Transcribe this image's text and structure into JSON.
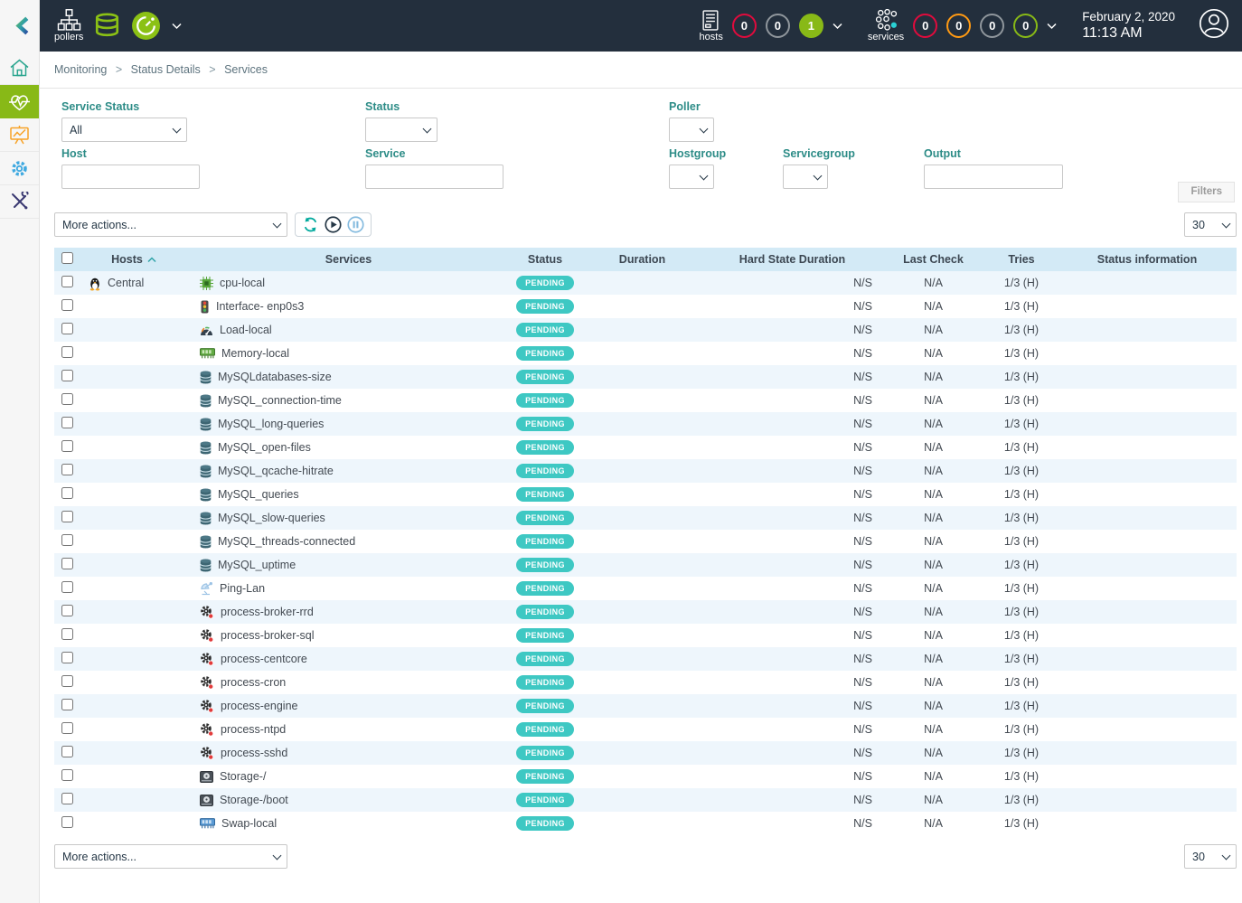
{
  "top_header": {
    "pollers": {
      "label": "pollers",
      "icon": "pollers-icon",
      "db_icon": "poller-database-icon",
      "latency_icon": "poller-latency-icon",
      "chevron_icon": "chevron-down-icon"
    },
    "hosts": {
      "label": "hosts",
      "icon": "hosts-icon",
      "chevron_icon": "chevron-down-icon",
      "counters": [
        {
          "value": "0",
          "status": "down",
          "color": "#e00b3d"
        },
        {
          "value": "0",
          "status": "unreachable",
          "color": "#8f969c"
        },
        {
          "value": "1",
          "status": "up",
          "color": "#88b917"
        }
      ]
    },
    "services": {
      "label": "services",
      "icon": "services-icon",
      "chevron_icon": "chevron-down-icon",
      "counters": [
        {
          "value": "0",
          "status": "critical",
          "color": "#e00b3d"
        },
        {
          "value": "0",
          "status": "warning",
          "color": "#ff9a13"
        },
        {
          "value": "0",
          "status": "unknown",
          "color": "#8f969c"
        },
        {
          "value": "0",
          "status": "ok",
          "color": "#88b917"
        }
      ]
    },
    "clock": {
      "date": "February 2, 2020",
      "time": "11:13 AM"
    },
    "user": {
      "icon": "user-icon"
    }
  },
  "sidebar": {
    "logo_icon": "centreon-logo-icon",
    "items": [
      {
        "name": "home",
        "icon": "home-icon",
        "active": false
      },
      {
        "name": "monitoring",
        "icon": "monitoring-icon",
        "active": true
      },
      {
        "name": "reporting",
        "icon": "reporting-icon",
        "active": false
      },
      {
        "name": "configuration",
        "icon": "configuration-icon",
        "active": false
      },
      {
        "name": "administration",
        "icon": "administration-icon",
        "active": false
      }
    ]
  },
  "breadcrumb": {
    "items": [
      "Monitoring",
      "Status Details",
      "Services"
    ],
    "separator": ">"
  },
  "filters": {
    "service_status": {
      "label": "Service Status",
      "value": "All"
    },
    "status": {
      "label": "Status",
      "value": ""
    },
    "poller": {
      "label": "Poller",
      "value": ""
    },
    "host": {
      "label": "Host",
      "value": ""
    },
    "service": {
      "label": "Service",
      "value": ""
    },
    "hostgroup": {
      "label": "Hostgroup",
      "value": ""
    },
    "servicegroup": {
      "label": "Servicegroup",
      "value": ""
    },
    "output": {
      "label": "Output",
      "value": ""
    },
    "tab_label": "Filters"
  },
  "toolbar": {
    "more_actions": "More actions...",
    "refresh_icon": "refresh-icon",
    "play_icon": "play-icon",
    "pause_icon": "pause-icon",
    "page_size": "30"
  },
  "footer": {
    "more_actions": "More actions...",
    "page_size": "30"
  },
  "table": {
    "sort_icon": "sort-asc-icon",
    "headers": {
      "hosts": "Hosts",
      "services": "Services",
      "status": "Status",
      "duration": "Duration",
      "hard_state_duration": "Hard State Duration",
      "last_check": "Last Check",
      "tries": "Tries",
      "status_information": "Status information"
    },
    "rows": [
      {
        "host": "Central",
        "host_icon": "linux-icon",
        "service_icon": "cpu-icon",
        "service": "cpu-local",
        "status": "PENDING",
        "duration": "",
        "hard_state_duration": "N/S",
        "last_check": "N/A",
        "tries": "1/3 (H)",
        "status_information": ""
      },
      {
        "host": "",
        "host_icon": "",
        "service_icon": "interface-icon",
        "service": "Interface- enp0s3",
        "status": "PENDING",
        "duration": "",
        "hard_state_duration": "N/S",
        "last_check": "N/A",
        "tries": "1/3 (H)",
        "status_information": ""
      },
      {
        "host": "",
        "host_icon": "",
        "service_icon": "load-icon",
        "service": "Load-local",
        "status": "PENDING",
        "duration": "",
        "hard_state_duration": "N/S",
        "last_check": "N/A",
        "tries": "1/3 (H)",
        "status_information": ""
      },
      {
        "host": "",
        "host_icon": "",
        "service_icon": "memory-icon",
        "service": "Memory-local",
        "status": "PENDING",
        "duration": "",
        "hard_state_duration": "N/S",
        "last_check": "N/A",
        "tries": "1/3 (H)",
        "status_information": ""
      },
      {
        "host": "",
        "host_icon": "",
        "service_icon": "database-icon",
        "service": "MySQLdatabases-size",
        "status": "PENDING",
        "duration": "",
        "hard_state_duration": "N/S",
        "last_check": "N/A",
        "tries": "1/3 (H)",
        "status_information": ""
      },
      {
        "host": "",
        "host_icon": "",
        "service_icon": "database-icon",
        "service": "MySQL_connection-time",
        "status": "PENDING",
        "duration": "",
        "hard_state_duration": "N/S",
        "last_check": "N/A",
        "tries": "1/3 (H)",
        "status_information": ""
      },
      {
        "host": "",
        "host_icon": "",
        "service_icon": "database-icon",
        "service": "MySQL_long-queries",
        "status": "PENDING",
        "duration": "",
        "hard_state_duration": "N/S",
        "last_check": "N/A",
        "tries": "1/3 (H)",
        "status_information": ""
      },
      {
        "host": "",
        "host_icon": "",
        "service_icon": "database-icon",
        "service": "MySQL_open-files",
        "status": "PENDING",
        "duration": "",
        "hard_state_duration": "N/S",
        "last_check": "N/A",
        "tries": "1/3 (H)",
        "status_information": ""
      },
      {
        "host": "",
        "host_icon": "",
        "service_icon": "database-icon",
        "service": "MySQL_qcache-hitrate",
        "status": "PENDING",
        "duration": "",
        "hard_state_duration": "N/S",
        "last_check": "N/A",
        "tries": "1/3 (H)",
        "status_information": ""
      },
      {
        "host": "",
        "host_icon": "",
        "service_icon": "database-icon",
        "service": "MySQL_queries",
        "status": "PENDING",
        "duration": "",
        "hard_state_duration": "N/S",
        "last_check": "N/A",
        "tries": "1/3 (H)",
        "status_information": ""
      },
      {
        "host": "",
        "host_icon": "",
        "service_icon": "database-icon",
        "service": "MySQL_slow-queries",
        "status": "PENDING",
        "duration": "",
        "hard_state_duration": "N/S",
        "last_check": "N/A",
        "tries": "1/3 (H)",
        "status_information": ""
      },
      {
        "host": "",
        "host_icon": "",
        "service_icon": "database-icon",
        "service": "MySQL_threads-connected",
        "status": "PENDING",
        "duration": "",
        "hard_state_duration": "N/S",
        "last_check": "N/A",
        "tries": "1/3 (H)",
        "status_information": ""
      },
      {
        "host": "",
        "host_icon": "",
        "service_icon": "database-icon",
        "service": "MySQL_uptime",
        "status": "PENDING",
        "duration": "",
        "hard_state_duration": "N/S",
        "last_check": "N/A",
        "tries": "1/3 (H)",
        "status_information": ""
      },
      {
        "host": "",
        "host_icon": "",
        "service_icon": "ping-icon",
        "service": "Ping-Lan",
        "status": "PENDING",
        "duration": "",
        "hard_state_duration": "N/S",
        "last_check": "N/A",
        "tries": "1/3 (H)",
        "status_information": ""
      },
      {
        "host": "",
        "host_icon": "",
        "service_icon": "process-icon",
        "service": "process-broker-rrd",
        "status": "PENDING",
        "duration": "",
        "hard_state_duration": "N/S",
        "last_check": "N/A",
        "tries": "1/3 (H)",
        "status_information": ""
      },
      {
        "host": "",
        "host_icon": "",
        "service_icon": "process-icon",
        "service": "process-broker-sql",
        "status": "PENDING",
        "duration": "",
        "hard_state_duration": "N/S",
        "last_check": "N/A",
        "tries": "1/3 (H)",
        "status_information": ""
      },
      {
        "host": "",
        "host_icon": "",
        "service_icon": "process-icon",
        "service": "process-centcore",
        "status": "PENDING",
        "duration": "",
        "hard_state_duration": "N/S",
        "last_check": "N/A",
        "tries": "1/3 (H)",
        "status_information": ""
      },
      {
        "host": "",
        "host_icon": "",
        "service_icon": "process-icon",
        "service": "process-cron",
        "status": "PENDING",
        "duration": "",
        "hard_state_duration": "N/S",
        "last_check": "N/A",
        "tries": "1/3 (H)",
        "status_information": ""
      },
      {
        "host": "",
        "host_icon": "",
        "service_icon": "process-icon",
        "service": "process-engine",
        "status": "PENDING",
        "duration": "",
        "hard_state_duration": "N/S",
        "last_check": "N/A",
        "tries": "1/3 (H)",
        "status_information": ""
      },
      {
        "host": "",
        "host_icon": "",
        "service_icon": "process-icon",
        "service": "process-ntpd",
        "status": "PENDING",
        "duration": "",
        "hard_state_duration": "N/S",
        "last_check": "N/A",
        "tries": "1/3 (H)",
        "status_information": ""
      },
      {
        "host": "",
        "host_icon": "",
        "service_icon": "process-icon",
        "service": "process-sshd",
        "status": "PENDING",
        "duration": "",
        "hard_state_duration": "N/S",
        "last_check": "N/A",
        "tries": "1/3 (H)",
        "status_information": ""
      },
      {
        "host": "",
        "host_icon": "",
        "service_icon": "storage-icon",
        "service": "Storage-/",
        "status": "PENDING",
        "duration": "",
        "hard_state_duration": "N/S",
        "last_check": "N/A",
        "tries": "1/3 (H)",
        "status_information": ""
      },
      {
        "host": "",
        "host_icon": "",
        "service_icon": "storage-icon",
        "service": "Storage-/boot",
        "status": "PENDING",
        "duration": "",
        "hard_state_duration": "N/S",
        "last_check": "N/A",
        "tries": "1/3 (H)",
        "status_information": ""
      },
      {
        "host": "",
        "host_icon": "",
        "service_icon": "swap-icon",
        "service": "Swap-local",
        "status": "PENDING",
        "duration": "",
        "hard_state_duration": "N/S",
        "last_check": "N/A",
        "tries": "1/3 (H)",
        "status_information": ""
      }
    ]
  },
  "colors": {
    "header_bg": "#232f3d",
    "active_green": "#88b917",
    "pending_badge": "#3ec8c3",
    "critical": "#e00b3d",
    "warning": "#ff9a13",
    "unknown": "#8f969c",
    "ok": "#88b917",
    "table_header_bg": "#d3eaf6",
    "row_alt_bg": "#eef6fc"
  }
}
